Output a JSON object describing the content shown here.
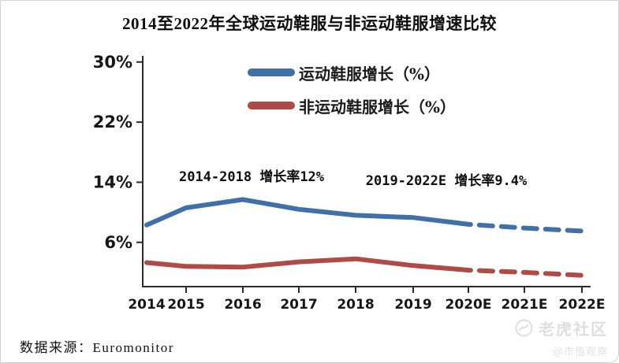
{
  "chart_data": {
    "type": "line",
    "title": "2014至2022年全球运动鞋服与非运动鞋服增速比较",
    "categories": [
      "2014",
      "2015",
      "2016",
      "2017",
      "2018",
      "2019",
      "2020E",
      "2021E",
      "2022E"
    ],
    "y_axis": {
      "ticks": [
        {
          "label": "30%",
          "value": 30
        },
        {
          "label": "22%",
          "value": 22
        },
        {
          "label": "14%",
          "value": 14
        },
        {
          "label": "6%",
          "value": 6
        }
      ],
      "range": [
        0,
        30.8
      ],
      "grid": false
    },
    "series": [
      {
        "name": "运动鞋服增长（%）",
        "color": "#4070A8",
        "values": [
          8.3,
          10.6,
          11.7,
          10.4,
          9.6,
          9.3,
          8.4,
          7.9,
          7.5
        ],
        "forecast_from_index": 6,
        "forecast_style": "dashed"
      },
      {
        "name": "非运动鞋服增长（%）",
        "color": "#B04A46",
        "values": [
          3.3,
          2.8,
          2.7,
          3.4,
          3.8,
          2.9,
          2.3,
          2.0,
          1.6
        ],
        "forecast_from_index": 6,
        "forecast_style": "dashed"
      }
    ],
    "annotations": [
      {
        "text": "2014-2018 增长率12%"
      },
      {
        "text": "2019-2022E 增长率9.4%"
      }
    ],
    "legend_position": "top-center"
  },
  "footer": {
    "source": "数据来源：Euromonitor"
  },
  "watermark": {
    "brand": "老虎社区",
    "handle": "@市值观察"
  }
}
